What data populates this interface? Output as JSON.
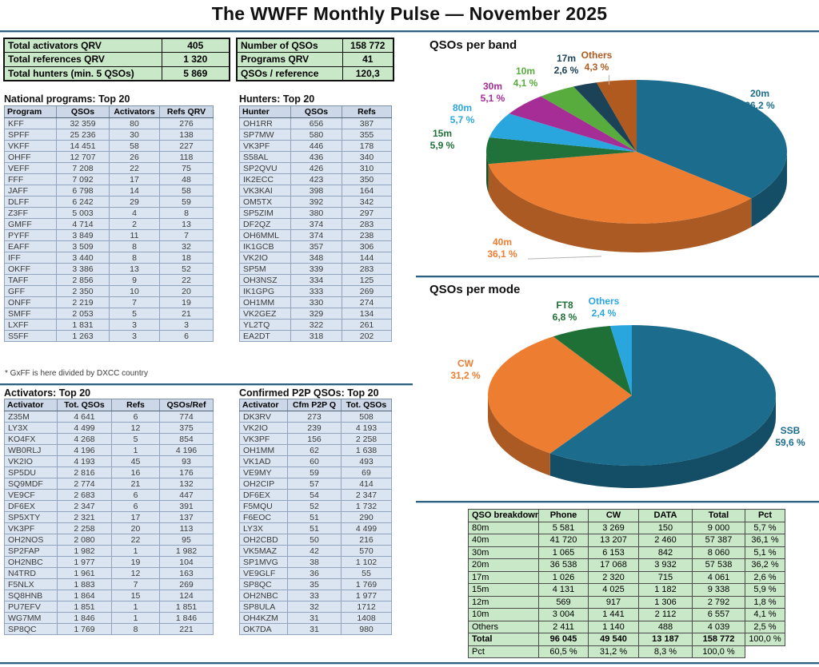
{
  "title": "The WWFF Monthly Pulse — November 2025",
  "summary_left": {
    "rows": [
      [
        "Total activators QRV",
        "405"
      ],
      [
        "Total references QRV",
        "1 320"
      ],
      [
        "Total hunters (min. 5 QSOs)",
        "5 869"
      ]
    ]
  },
  "summary_right": {
    "rows": [
      [
        "Number of QSOs",
        "158 772"
      ],
      [
        "Programs QRV",
        "41"
      ],
      [
        "QSOs / reference",
        "120,3"
      ]
    ]
  },
  "national": {
    "title": "National programs: Top 20",
    "headers": [
      "Program",
      "QSOs",
      "Activators",
      "Refs QRV"
    ],
    "rows": [
      [
        "KFF",
        "32 359",
        "80",
        "276"
      ],
      [
        "SPFF",
        "25 236",
        "30",
        "138"
      ],
      [
        "VKFF",
        "14 451",
        "58",
        "227"
      ],
      [
        "OHFF",
        "12 707",
        "26",
        "118"
      ],
      [
        "VEFF",
        "7 208",
        "22",
        "75"
      ],
      [
        "FFF",
        "7 092",
        "17",
        "48"
      ],
      [
        "JAFF",
        "6 798",
        "14",
        "58"
      ],
      [
        "DLFF",
        "6 242",
        "29",
        "59"
      ],
      [
        "Z3FF",
        "5 003",
        "4",
        "8"
      ],
      [
        "GMFF",
        "4 714",
        "2",
        "13"
      ],
      [
        "PYFF",
        "3 849",
        "11",
        "7"
      ],
      [
        "EAFF",
        "3 509",
        "8",
        "32"
      ],
      [
        "IFF",
        "3 440",
        "8",
        "18"
      ],
      [
        "OKFF",
        "3 386",
        "13",
        "52"
      ],
      [
        "TAFF",
        "2 856",
        "9",
        "22"
      ],
      [
        "GFF",
        "2 350",
        "10",
        "20"
      ],
      [
        "ONFF",
        "2 219",
        "7",
        "19"
      ],
      [
        "SMFF",
        "2 053",
        "5",
        "21"
      ],
      [
        "LXFF",
        "1 831",
        "3",
        "3"
      ],
      [
        "S5FF",
        "1 263",
        "3",
        "6"
      ]
    ],
    "footnote": "* GxFF is here divided by DXCC country"
  },
  "hunters": {
    "title": "Hunters: Top 20",
    "headers": [
      "Hunter",
      "QSOs",
      "Refs"
    ],
    "rows": [
      [
        "OH1RR",
        "656",
        "387"
      ],
      [
        "SP7MW",
        "580",
        "355"
      ],
      [
        "VK3PF",
        "446",
        "178"
      ],
      [
        "S58AL",
        "436",
        "340"
      ],
      [
        "SP2QVU",
        "426",
        "310"
      ],
      [
        "IK2ECC",
        "423",
        "350"
      ],
      [
        "VK3KAI",
        "398",
        "164"
      ],
      [
        "OM5TX",
        "392",
        "342"
      ],
      [
        "SP5ZIM",
        "380",
        "297"
      ],
      [
        "DF2QZ",
        "374",
        "283"
      ],
      [
        "OH6MML",
        "374",
        "238"
      ],
      [
        "IK1GCB",
        "357",
        "306"
      ],
      [
        "VK2IO",
        "348",
        "144"
      ],
      [
        "SP5M",
        "339",
        "283"
      ],
      [
        "OH3NSZ",
        "334",
        "125"
      ],
      [
        "IK1GPG",
        "333",
        "269"
      ],
      [
        "OH1MM",
        "330",
        "274"
      ],
      [
        "VK2GEZ",
        "329",
        "134"
      ],
      [
        "YL2TQ",
        "322",
        "261"
      ],
      [
        "EA2DT",
        "318",
        "202"
      ]
    ]
  },
  "activators": {
    "title": "Activators: Top 20",
    "headers": [
      "Activator",
      "Tot. QSOs",
      "Refs",
      "QSOs/Ref"
    ],
    "rows": [
      [
        "Z35M",
        "4 641",
        "6",
        "774"
      ],
      [
        "LY3X",
        "4 499",
        "12",
        "375"
      ],
      [
        "KO4FX",
        "4 268",
        "5",
        "854"
      ],
      [
        "WB0RLJ",
        "4 196",
        "1",
        "4 196"
      ],
      [
        "VK2IO",
        "4 193",
        "45",
        "93"
      ],
      [
        "SP5DU",
        "2 816",
        "16",
        "176"
      ],
      [
        "SQ9MDF",
        "2 774",
        "21",
        "132"
      ],
      [
        "VE9CF",
        "2 683",
        "6",
        "447"
      ],
      [
        "DF6EX",
        "2 347",
        "6",
        "391"
      ],
      [
        "SP5XTY",
        "2 321",
        "17",
        "137"
      ],
      [
        "VK3PF",
        "2 258",
        "20",
        "113"
      ],
      [
        "OH2NOS",
        "2 080",
        "22",
        "95"
      ],
      [
        "SP2FAP",
        "1 982",
        "1",
        "1 982"
      ],
      [
        "OH2NBC",
        "1 977",
        "19",
        "104"
      ],
      [
        "N4TRD",
        "1 961",
        "12",
        "163"
      ],
      [
        "F5NLX",
        "1 883",
        "7",
        "269"
      ],
      [
        "SQ8HNB",
        "1 864",
        "15",
        "124"
      ],
      [
        "PU7EFV",
        "1 851",
        "1",
        "1 851"
      ],
      [
        "WG7MM",
        "1 846",
        "1",
        "1 846"
      ],
      [
        "SP8QC",
        "1 769",
        "8",
        "221"
      ]
    ]
  },
  "p2p": {
    "title": "Confirmed P2P QSOs: Top 20",
    "headers": [
      "Activator",
      "Cfm P2P Q",
      "Tot. QSOs"
    ],
    "rows": [
      [
        "DK3RV",
        "273",
        "508"
      ],
      [
        "VK2IO",
        "239",
        "4 193"
      ],
      [
        "VK3PF",
        "156",
        "2 258"
      ],
      [
        "OH1MM",
        "62",
        "1 638"
      ],
      [
        "VK1AD",
        "60",
        "493"
      ],
      [
        "VE9MY",
        "59",
        "69"
      ],
      [
        "OH2CIP",
        "57",
        "414"
      ],
      [
        "DF6EX",
        "54",
        "2 347"
      ],
      [
        "F5MQU",
        "52",
        "1 732"
      ],
      [
        "F6EOC",
        "51",
        "290"
      ],
      [
        "LY3X",
        "51",
        "4 499"
      ],
      [
        "OH2CBD",
        "50",
        "216"
      ],
      [
        "VK5MAZ",
        "42",
        "570"
      ],
      [
        "SP1MVG",
        "38",
        "1 102"
      ],
      [
        "VE9GLF",
        "36",
        "55"
      ],
      [
        "SP8QC",
        "35",
        "1 769"
      ],
      [
        "OH2NBC",
        "33",
        "1 977"
      ],
      [
        "SP8ULA",
        "32",
        "1712"
      ],
      [
        "OH4KZM",
        "31",
        "1408"
      ],
      [
        "OK7DA",
        "31",
        "980"
      ]
    ]
  },
  "chart_data": [
    {
      "type": "pie",
      "title": "QSOs per band",
      "labels": [
        "20m",
        "40m",
        "15m",
        "80m",
        "30m",
        "10m",
        "17m",
        "Others"
      ],
      "values": [
        36.2,
        36.1,
        5.9,
        5.7,
        5.1,
        4.1,
        2.6,
        4.3
      ],
      "display": [
        "36,2 %",
        "36,1 %",
        "5,9 %",
        "5,7 %",
        "5,1 %",
        "4,1 %",
        "2,6 %",
        "4,3 %"
      ],
      "colors": [
        "#1c6d8d",
        "#ed7d31",
        "#20713a",
        "#2aa6de",
        "#a62c96",
        "#57ac3d",
        "#1c4258",
        "#b05a1f"
      ],
      "style": "3d-pie",
      "legend": "outside-labels"
    },
    {
      "type": "pie",
      "title": "QSOs per mode",
      "labels": [
        "SSB",
        "CW",
        "FT8",
        "Others"
      ],
      "values": [
        59.6,
        31.2,
        6.8,
        2.4
      ],
      "display": [
        "59,6 %",
        "31,2 %",
        "6,8 %",
        "2,4 %"
      ],
      "colors": [
        "#1c6d8d",
        "#ed7d31",
        "#1e7037",
        "#2aa6de"
      ],
      "style": "3d-pie",
      "legend": "outside-labels"
    }
  ],
  "breakdown": {
    "headers": [
      "QSO breakdown",
      "Phone",
      "CW",
      "DATA",
      "Total",
      "Pct"
    ],
    "rows": [
      [
        "80m",
        "5 581",
        "3 269",
        "150",
        "9 000",
        "5,7 %"
      ],
      [
        "40m",
        "41 720",
        "13 207",
        "2 460",
        "57 387",
        "36,1 %"
      ],
      [
        "30m",
        "1 065",
        "6 153",
        "842",
        "8 060",
        "5,1 %"
      ],
      [
        "20m",
        "36 538",
        "17 068",
        "3 932",
        "57 538",
        "36,2 %"
      ],
      [
        "17m",
        "1 026",
        "2 320",
        "715",
        "4 061",
        "2,6 %"
      ],
      [
        "15m",
        "4 131",
        "4 025",
        "1 182",
        "9 338",
        "5,9 %"
      ],
      [
        "12m",
        "569",
        "917",
        "1 306",
        "2 792",
        "1,8 %"
      ],
      [
        "10m",
        "3 004",
        "1 441",
        "2 112",
        "6 557",
        "4,1 %"
      ],
      [
        "Others",
        "2 411",
        "1 140",
        "488",
        "4 039",
        "2,5 %"
      ],
      [
        "Total",
        "96 045",
        "49 540",
        "13 187",
        "158 772",
        "100,0 %"
      ],
      [
        "Pct",
        "60,5 %",
        "31,2 %",
        "8,3 %",
        "100,0 %",
        ""
      ]
    ]
  }
}
